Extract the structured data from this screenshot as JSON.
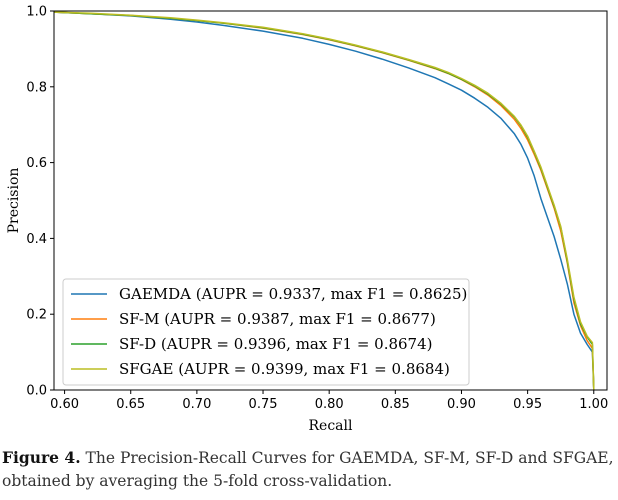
{
  "chart_data": {
    "type": "line",
    "title": "",
    "xlabel": "Recall",
    "ylabel": "Precision",
    "xlim": [
      0.592,
      1.01
    ],
    "ylim": [
      0.0,
      1.0
    ],
    "xticks": [
      0.6,
      0.65,
      0.7,
      0.75,
      0.8,
      0.85,
      0.9,
      0.95,
      1.0
    ],
    "xtick_labels": [
      "0.60",
      "0.65",
      "0.70",
      "0.75",
      "0.80",
      "0.85",
      "0.90",
      "0.95",
      "1.00"
    ],
    "yticks": [
      0.0,
      0.2,
      0.4,
      0.6,
      0.8,
      1.0
    ],
    "ytick_labels": [
      "0.0",
      "0.2",
      "0.4",
      "0.6",
      "0.8",
      "1.0"
    ],
    "grid": false,
    "legend_position": "lower-left",
    "series": [
      {
        "name": "GAEMDA (AUPR = 0.9337, max F1 = 0.8625)",
        "color": "#1f77b4",
        "x": [
          0.592,
          0.62,
          0.65,
          0.68,
          0.7,
          0.72,
          0.75,
          0.78,
          0.8,
          0.82,
          0.84,
          0.86,
          0.88,
          0.89,
          0.9,
          0.91,
          0.92,
          0.93,
          0.94,
          0.945,
          0.95,
          0.955,
          0.96,
          0.965,
          0.97,
          0.975,
          0.98,
          0.985,
          0.99,
          0.995,
          0.999,
          1.0
        ],
        "y": [
          0.997,
          0.993,
          0.987,
          0.978,
          0.971,
          0.962,
          0.947,
          0.928,
          0.912,
          0.894,
          0.873,
          0.85,
          0.824,
          0.808,
          0.791,
          0.77,
          0.746,
          0.716,
          0.676,
          0.648,
          0.612,
          0.565,
          0.505,
          0.455,
          0.405,
          0.345,
          0.28,
          0.2,
          0.15,
          0.12,
          0.1,
          0.0
        ]
      },
      {
        "name": "SF-M (AUPR = 0.9387, max F1 = 0.8677)",
        "color": "#ff7f0e",
        "x": [
          0.592,
          0.62,
          0.65,
          0.68,
          0.7,
          0.72,
          0.75,
          0.78,
          0.8,
          0.82,
          0.84,
          0.86,
          0.88,
          0.89,
          0.9,
          0.91,
          0.92,
          0.93,
          0.94,
          0.945,
          0.95,
          0.955,
          0.96,
          0.965,
          0.97,
          0.975,
          0.98,
          0.985,
          0.99,
          0.995,
          0.999,
          1.0
        ],
        "y": [
          0.997,
          0.993,
          0.988,
          0.981,
          0.975,
          0.968,
          0.955,
          0.938,
          0.924,
          0.908,
          0.89,
          0.87,
          0.848,
          0.835,
          0.819,
          0.8,
          0.778,
          0.75,
          0.714,
          0.69,
          0.66,
          0.622,
          0.58,
          0.53,
          0.48,
          0.42,
          0.335,
          0.23,
          0.17,
          0.13,
          0.11,
          0.0
        ]
      },
      {
        "name": "SF-D (AUPR = 0.9396, max F1 = 0.8674)",
        "color": "#2ca02c",
        "x": [
          0.592,
          0.62,
          0.65,
          0.68,
          0.7,
          0.72,
          0.75,
          0.78,
          0.8,
          0.82,
          0.84,
          0.86,
          0.88,
          0.89,
          0.9,
          0.91,
          0.92,
          0.93,
          0.94,
          0.945,
          0.95,
          0.955,
          0.96,
          0.965,
          0.97,
          0.975,
          0.98,
          0.985,
          0.99,
          0.995,
          0.999,
          1.0
        ],
        "y": [
          0.997,
          0.993,
          0.988,
          0.981,
          0.975,
          0.968,
          0.956,
          0.939,
          0.925,
          0.909,
          0.891,
          0.871,
          0.849,
          0.836,
          0.82,
          0.802,
          0.781,
          0.754,
          0.72,
          0.697,
          0.667,
          0.628,
          0.585,
          0.535,
          0.485,
          0.43,
          0.34,
          0.24,
          0.175,
          0.14,
          0.12,
          0.0
        ]
      },
      {
        "name": "SFGAE (AUPR = 0.9399, max F1 = 0.8684)",
        "color": "#bcbd22",
        "x": [
          0.592,
          0.62,
          0.65,
          0.68,
          0.7,
          0.72,
          0.75,
          0.78,
          0.8,
          0.82,
          0.84,
          0.86,
          0.88,
          0.89,
          0.9,
          0.91,
          0.92,
          0.93,
          0.94,
          0.945,
          0.95,
          0.955,
          0.96,
          0.965,
          0.97,
          0.975,
          0.98,
          0.985,
          0.99,
          0.995,
          0.999,
          1.0
        ],
        "y": [
          0.997,
          0.994,
          0.989,
          0.982,
          0.976,
          0.969,
          0.957,
          0.94,
          0.926,
          0.91,
          0.892,
          0.872,
          0.851,
          0.838,
          0.822,
          0.804,
          0.783,
          0.756,
          0.722,
          0.699,
          0.67,
          0.63,
          0.588,
          0.538,
          0.488,
          0.432,
          0.345,
          0.245,
          0.18,
          0.142,
          0.125,
          0.0
        ]
      }
    ]
  },
  "caption": {
    "label": "Figure 4.",
    "text": " The Precision-Recall Curves for GAEMDA, SF-M, SF-D and SFGAE, obtained by averaging the 5-fold cross-validation."
  }
}
